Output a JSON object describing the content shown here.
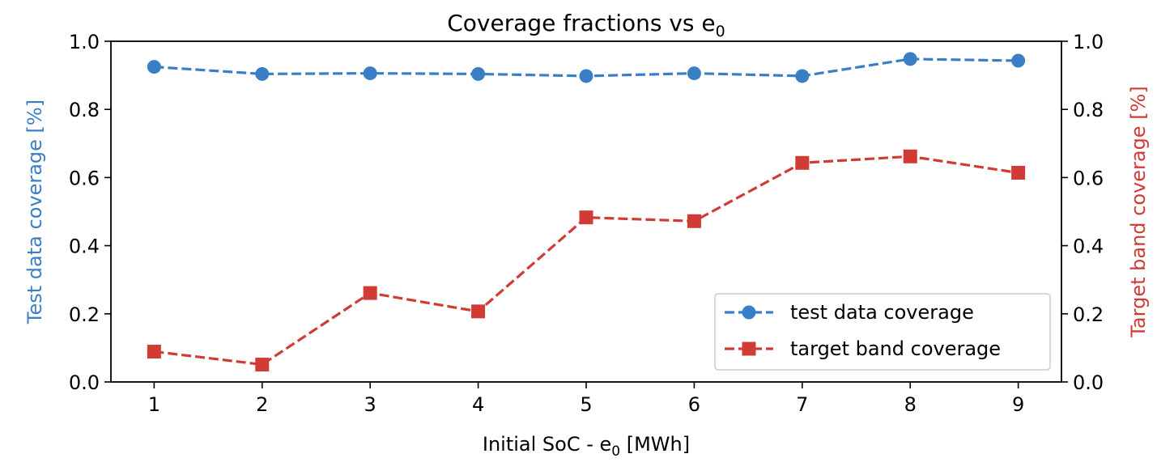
{
  "chart_data": {
    "type": "line",
    "title": "Coverage fractions vs e",
    "title_subscript": "0",
    "xlabel_prefix": "Initial SoC - e",
    "xlabel_subscript": "0",
    "xlabel_suffix": " [MWh]",
    "ylabel_left": "Test data coverage [%]",
    "ylabel_right": "Target band coverage [%]",
    "x": [
      1,
      2,
      3,
      4,
      5,
      6,
      7,
      8,
      9
    ],
    "x_tick_labels": [
      "1",
      "2",
      "3",
      "4",
      "5",
      "6",
      "7",
      "8",
      "9"
    ],
    "xlim": [
      0.6,
      9.4
    ],
    "ylim_left": [
      0.0,
      1.0
    ],
    "ylim_right": [
      0.0,
      1.0
    ],
    "y_tick_labels_left": [
      "0.0",
      "0.2",
      "0.4",
      "0.6",
      "0.8",
      "1.0"
    ],
    "y_tick_labels_right": [
      "0.0",
      "0.2",
      "0.4",
      "0.6",
      "0.8",
      "1.0"
    ],
    "y_ticks": [
      0.0,
      0.2,
      0.4,
      0.6,
      0.8,
      1.0
    ],
    "legend_position": "lower-right",
    "grid": false,
    "series": [
      {
        "name": "test data coverage",
        "axis": "left",
        "color": "#3a7fc6",
        "marker": "circle",
        "linestyle": "dashed",
        "values": [
          0.925,
          0.904,
          0.906,
          0.904,
          0.898,
          0.906,
          0.898,
          0.948,
          0.943
        ]
      },
      {
        "name": "target band coverage",
        "axis": "right",
        "color": "#d13b35",
        "marker": "square",
        "linestyle": "dashed",
        "values": [
          0.089,
          0.051,
          0.261,
          0.207,
          0.483,
          0.472,
          0.643,
          0.662,
          0.614
        ]
      }
    ]
  }
}
